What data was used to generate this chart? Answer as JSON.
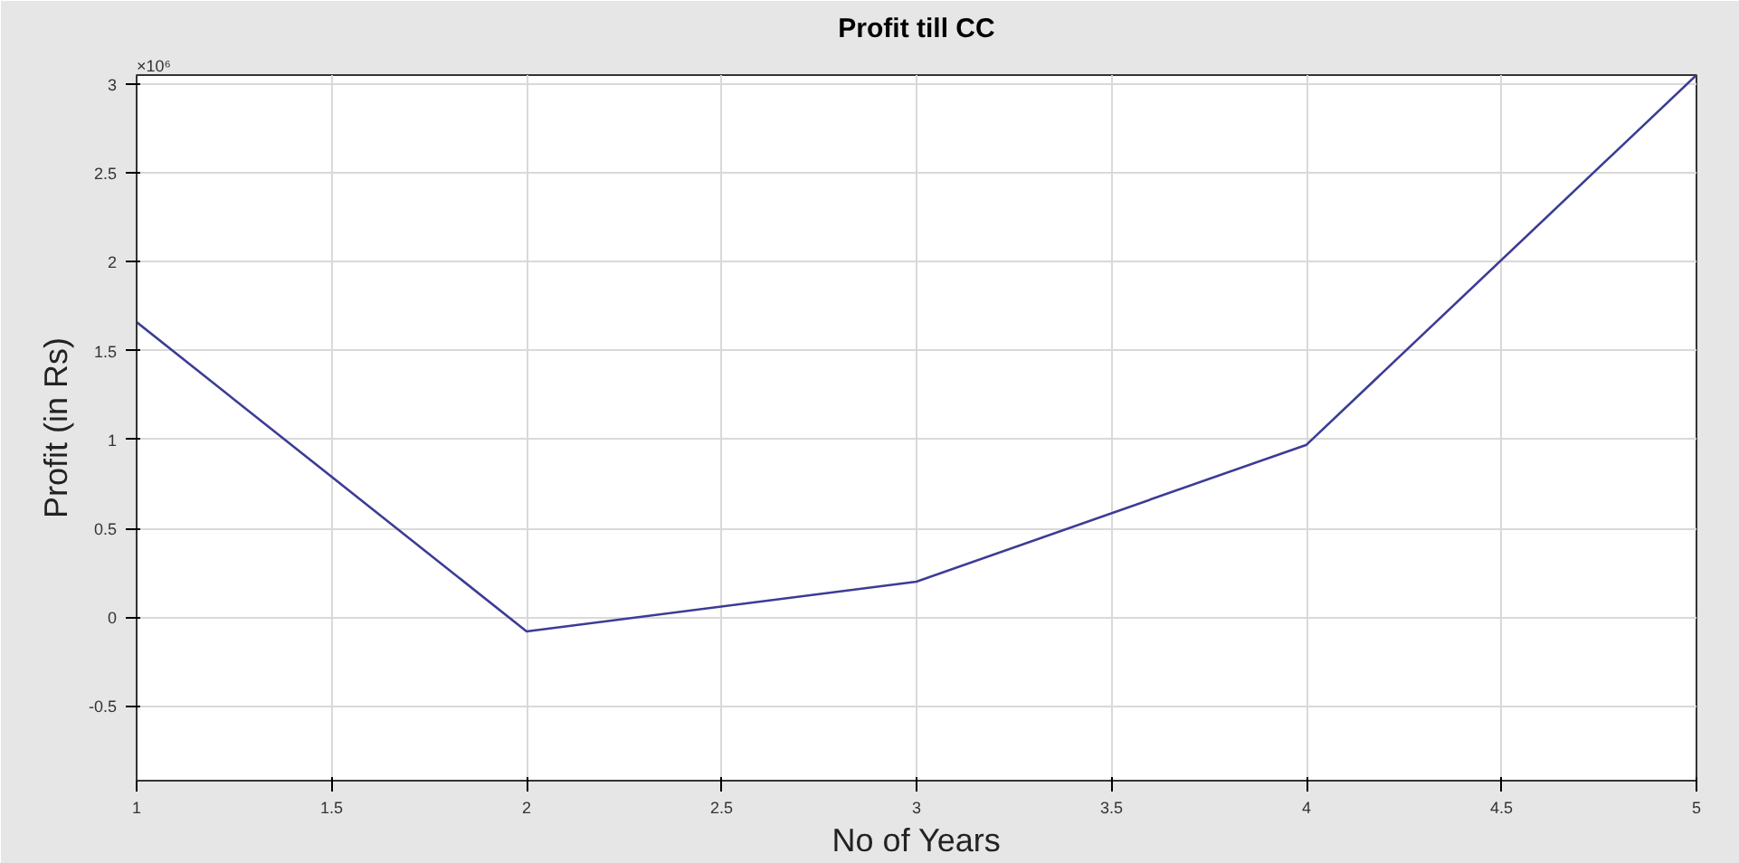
{
  "chart_data": {
    "type": "line",
    "title": "Profit till CC",
    "xlabel": "No of Years",
    "ylabel": "Profit (in Rs)",
    "x": [
      1,
      2,
      3,
      4,
      5
    ],
    "series": [
      {
        "color": "#3c3c96",
        "values": [
          1.66,
          -0.08,
          0.2,
          0.97,
          3.05
        ]
      }
    ],
    "xlim": [
      1,
      5
    ],
    "xticks": [
      1,
      1.5,
      2,
      2.5,
      3,
      3.5,
      4,
      4.5,
      5
    ],
    "ylim": [
      -0.92,
      3.05
    ],
    "yticks": [
      -0.5,
      0,
      0.5,
      1,
      1.5,
      2,
      2.5,
      3
    ],
    "annotations": [
      "×10⁶"
    ],
    "grid": true,
    "marker": "none",
    "line_style": "solid"
  }
}
